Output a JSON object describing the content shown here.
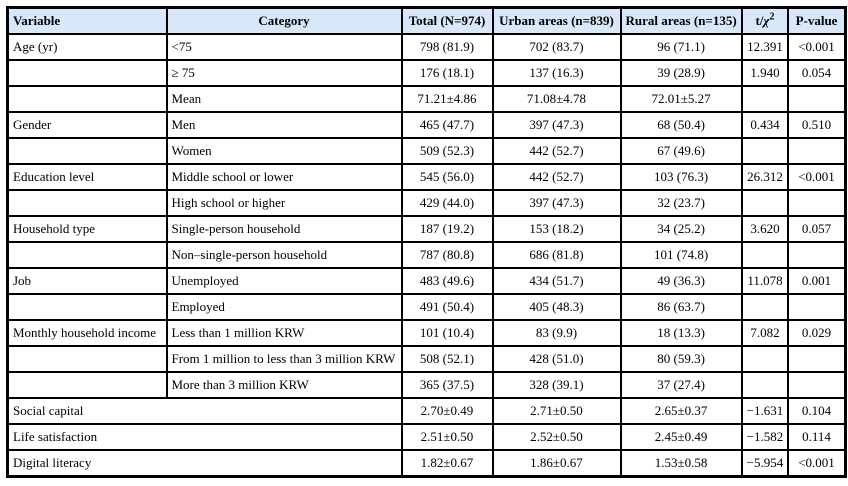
{
  "table": {
    "header": {
      "variable": "Variable",
      "category": "Category",
      "total": "Total (N=974)",
      "urban": "Urban areas (n=839)",
      "rural": "Rural areas (n=135)",
      "stat_t": "t/",
      "stat_chi": "χ",
      "stat_sup": "2",
      "p": "P-value"
    },
    "rows": [
      {
        "variable": "Age (yr)",
        "category": "<75",
        "total": "798 (81.9)",
        "urban": "702 (83.7)",
        "rural": "96 (71.1)",
        "stat": "12.391",
        "p": "<0.001"
      },
      {
        "variable": "",
        "category": "≥ 75",
        "total": "176 (18.1)",
        "urban": "137 (16.3)",
        "rural": "39 (28.9)",
        "stat": "1.940",
        "p": "0.054"
      },
      {
        "variable": "",
        "category": "Mean",
        "total": "71.21±4.86",
        "urban": "71.08±4.78",
        "rural": "72.01±5.27",
        "stat": "",
        "p": ""
      },
      {
        "variable": "Gender",
        "category": "Men",
        "total": "465 (47.7)",
        "urban": "397 (47.3)",
        "rural": "68 (50.4)",
        "stat": "0.434",
        "p": "0.510"
      },
      {
        "variable": "",
        "category": "Women",
        "total": "509 (52.3)",
        "urban": "442 (52.7)",
        "rural": "67 (49.6)",
        "stat": "",
        "p": ""
      },
      {
        "variable": "Education level",
        "category": "Middle school or lower",
        "total": "545 (56.0)",
        "urban": "442 (52.7)",
        "rural": "103 (76.3)",
        "stat": "26.312",
        "p": "<0.001"
      },
      {
        "variable": "",
        "category": "High school or higher",
        "total": "429 (44.0)",
        "urban": "397 (47.3)",
        "rural": "32 (23.7)",
        "stat": "",
        "p": ""
      },
      {
        "variable": "Household type",
        "category": "Single-person household",
        "total": "187 (19.2)",
        "urban": "153 (18.2)",
        "rural": "34 (25.2)",
        "stat": "3.620",
        "p": "0.057"
      },
      {
        "variable": "",
        "category": "Non–single-person household",
        "total": "787 (80.8)",
        "urban": "686 (81.8)",
        "rural": "101 (74.8)",
        "stat": "",
        "p": ""
      },
      {
        "variable": "Job",
        "category": "Unemployed",
        "total": "483 (49.6)",
        "urban": "434 (51.7)",
        "rural": "49 (36.3)",
        "stat": "11.078",
        "p": "0.001"
      },
      {
        "variable": "",
        "category": "Employed",
        "total": "491 (50.4)",
        "urban": "405 (48.3)",
        "rural": "86 (63.7)",
        "stat": "",
        "p": ""
      },
      {
        "variable": "Monthly household income",
        "category": "Less than 1 million KRW",
        "total": "101 (10.4)",
        "urban": "83 (9.9)",
        "rural": "18 (13.3)",
        "stat": "7.082",
        "p": "0.029"
      },
      {
        "variable": "",
        "category": "From 1 million to less than 3 million KRW",
        "total": "508 (52.1)",
        "urban": "428 (51.0)",
        "rural": "80 (59.3)",
        "stat": "",
        "p": ""
      },
      {
        "variable": "",
        "category": "More than 3 million KRW",
        "total": "365 (37.5)",
        "urban": "328 (39.1)",
        "rural": "37 (27.4)",
        "stat": "",
        "p": ""
      },
      {
        "span2": true,
        "label": "Social capital",
        "total": "2.70±0.49",
        "urban": "2.71±0.50",
        "rural": "2.65±0.37",
        "stat": "−1.631",
        "p": "0.104"
      },
      {
        "span2": true,
        "label": "Life satisfaction",
        "total": "2.51±0.50",
        "urban": "2.52±0.50",
        "rural": "2.45±0.49",
        "stat": "−1.582",
        "p": "0.114"
      },
      {
        "span2": true,
        "label": "Digital literacy",
        "total": "1.82±0.67",
        "urban": "1.86±0.67",
        "rural": "1.53±0.58",
        "stat": "−5.954",
        "p": "<0.001"
      }
    ]
  },
  "colors": {
    "header_bg": "#d9e8f8",
    "border": "#000000",
    "text": "#000000"
  }
}
